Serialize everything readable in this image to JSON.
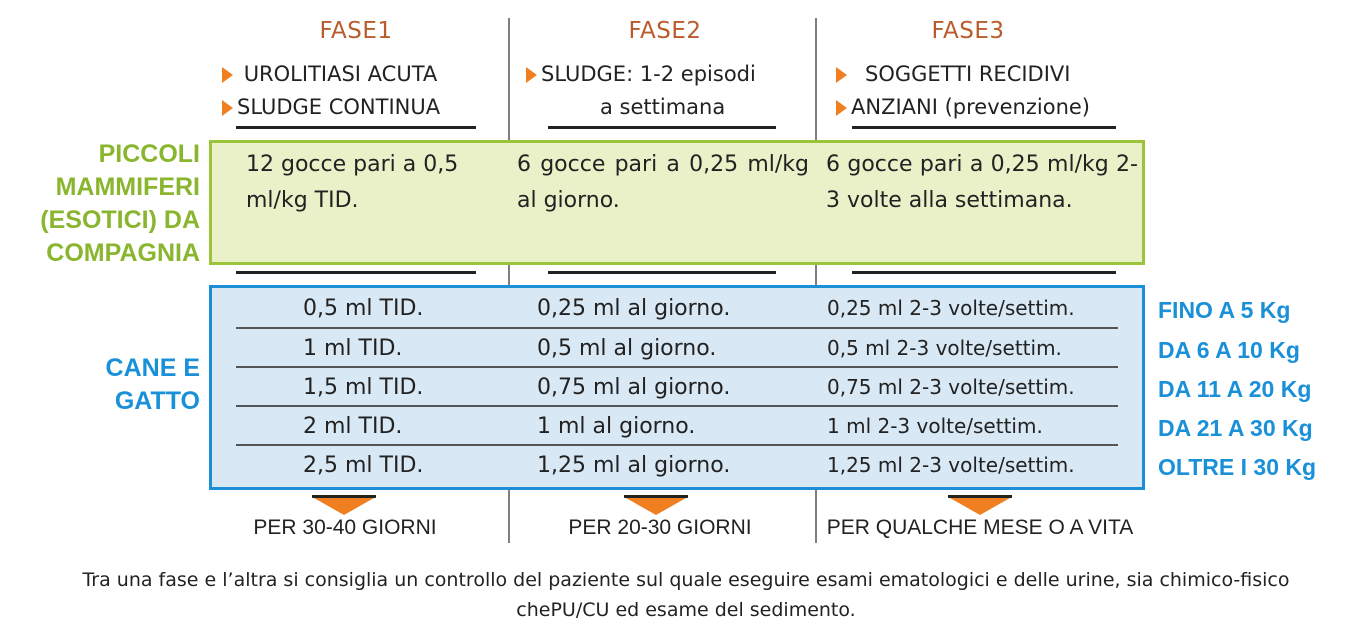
{
  "phases": [
    {
      "title": "FASE1",
      "criteria": [
        "UROLITIASI ACUTA",
        "SLUDGE CONTINUA"
      ],
      "green": "12 gocce pari a 0,5 ml/kg TID.",
      "dog_cat": [
        "0,5 ml TID.",
        "1 ml TID.",
        "1,5 ml TID.",
        "2 ml TID.",
        "2,5 ml TID."
      ],
      "duration": "PER 30-40 GIORNI"
    },
    {
      "title": "FASE2",
      "criteria": [
        "SLUDGE: 1-2 episodi",
        "a settimana"
      ],
      "green": "6 gocce pari a 0,25 ml/kg al giorno.",
      "dog_cat": [
        "0,25 ml al giorno.",
        "0,5 ml al giorno.",
        "0,75 ml al giorno.",
        "1 ml al giorno.",
        "1,25 ml al giorno."
      ],
      "duration": "PER 20-30 GIORNI"
    },
    {
      "title": "FASE3",
      "criteria": [
        "SOGGETTI RECIDIVI",
        "ANZIANI (prevenzione)"
      ],
      "green": "6 gocce pari a 0,25 ml/kg 2-3 volte alla settimana.",
      "dog_cat": [
        "0,25 ml 2-3 volte/settim.",
        "0,5 ml 2-3 volte/settim.",
        "0,75 ml 2-3 volte/settim.",
        "1 ml 2-3 volte/settim.",
        "1,25 ml 2-3 volte/settim."
      ],
      "duration": "PER QUALCHE MESE O A VITA"
    }
  ],
  "groups": {
    "small_mammals": "PICCOLI MAMMIFERI (ESOTICI) DA COMPAGNIA",
    "dog_cat": "CANE E GATTO"
  },
  "weights": [
    "FINO A 5 Kg",
    "DA 6 A 10 Kg",
    "DA 11 A 20 Kg",
    "DA 21 A 30 Kg",
    "OLTRE I 30 Kg"
  ],
  "note": "Tra una fase e l’altra si consiglia un controllo del paziente sul quale eseguire esami ematologici e delle urine, sia chimico-fisico chePU/CU ed esame del sedimento.",
  "colors": {
    "phase_title": "#b85c2c",
    "green_border": "#9bc43b",
    "green_fill": "#eaf1c8",
    "blue_border": "#1c8fd6",
    "blue_fill": "#d8e8f4",
    "arrow": "#f07f22"
  }
}
